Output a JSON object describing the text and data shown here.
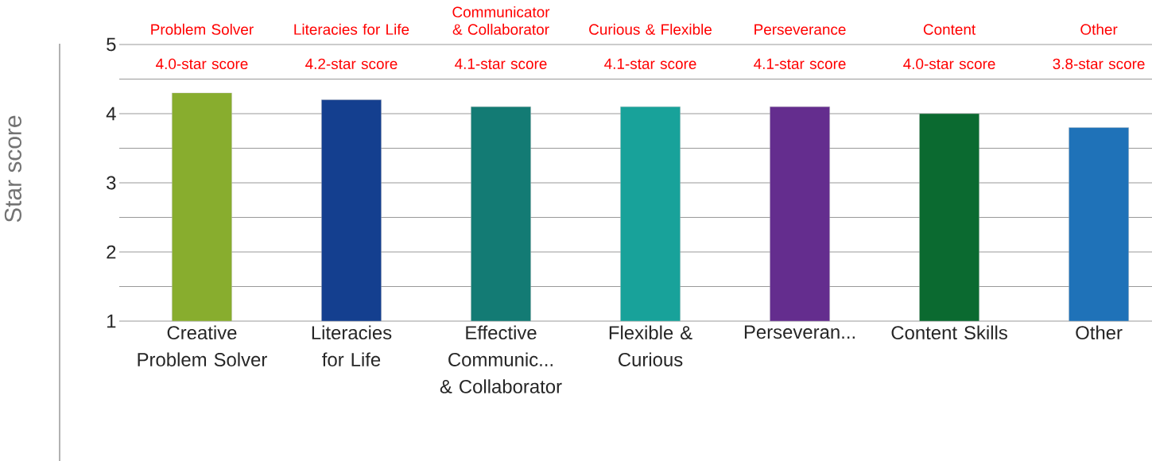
{
  "chart_data": {
    "type": "bar",
    "ylabel": "Star score",
    "categories": [
      "Creative Problem Solver",
      "Literacies for Life",
      "Effective Communic... & Collaborator",
      "Flexible & Curious",
      "Perseveran...",
      "Content Skills",
      "Other"
    ],
    "values": [
      4.3,
      4.2,
      4.1,
      4.1,
      4.1,
      4.0,
      3.8
    ],
    "colors": [
      "#88ad2e",
      "#143f8f",
      "#137b74",
      "#18a29a",
      "#642d8e",
      "#0b6a30",
      "#1f72b8"
    ],
    "ylim": [
      1,
      5
    ],
    "yticks": [
      1,
      2,
      3,
      4,
      5
    ],
    "grid": "y",
    "annotations": [
      "Problem Solver",
      "4.0-star score",
      "Literacies for Life",
      "4.2-star score",
      "Communicator & Collaborator",
      "4.1-star score",
      "Curious & Flexible",
      "4.1-star score",
      "Perseverance",
      "4.1-star score",
      "Content",
      "4.0-star score",
      "Other",
      "3.8-star score"
    ]
  }
}
